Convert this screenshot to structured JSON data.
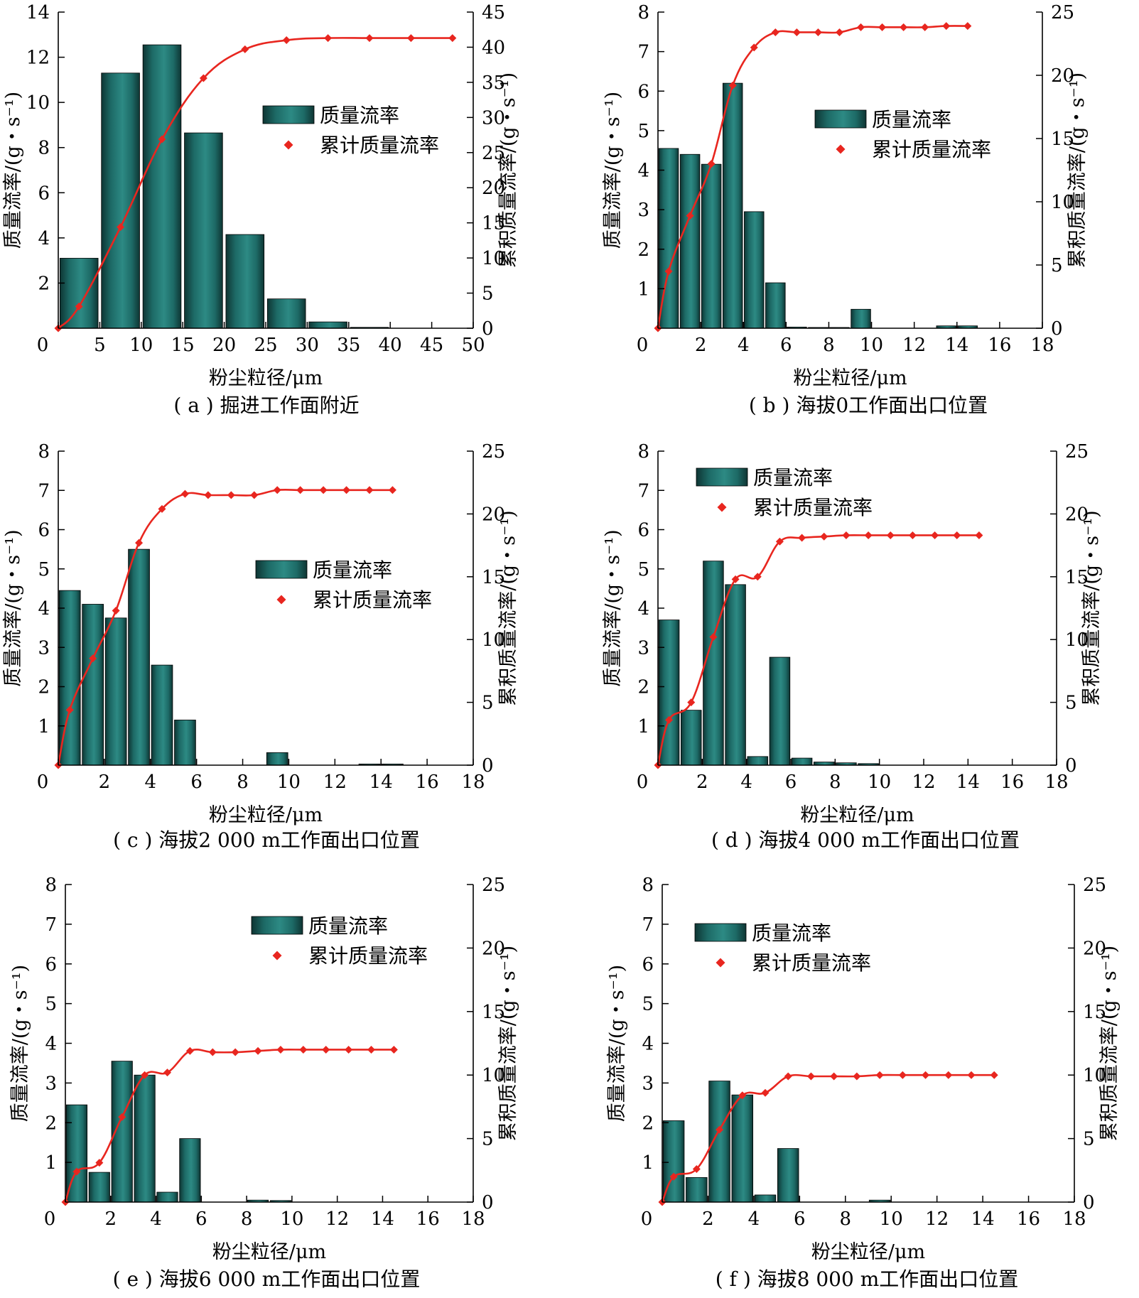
{
  "chart_data": [
    {
      "type": "bar",
      "caption": "( a ) 掘进工作面附近",
      "xlabel": "粉尘粒径/μm",
      "ylabel": "质量流率/(g・s⁻¹)",
      "y2label": "累积质量流率/(g・s⁻¹)",
      "xlim": [
        0,
        50
      ],
      "xticks": [
        0,
        5,
        10,
        15,
        20,
        25,
        30,
        35,
        40,
        45,
        50
      ],
      "ylim": [
        0,
        14
      ],
      "yticks": [
        2,
        4,
        6,
        8,
        10,
        12,
        14
      ],
      "y2lim": [
        0,
        45
      ],
      "y2ticks": [
        0,
        5,
        10,
        15,
        20,
        25,
        30,
        35,
        40,
        45
      ],
      "legend_position": "center-right",
      "series": [
        {
          "name": "质量流率",
          "type": "bar",
          "x": [
            2.5,
            7.5,
            12.5,
            17.5,
            22.5,
            27.5,
            32.5,
            37.5
          ],
          "values": [
            3.1,
            11.3,
            12.55,
            8.65,
            4.15,
            1.3,
            0.28,
            0.04
          ]
        },
        {
          "name": "累计质量流率",
          "type": "line",
          "x": [
            0,
            2.5,
            7.5,
            12.5,
            17.5,
            22.5,
            27.5,
            32.5,
            37.5,
            42.5,
            47.5
          ],
          "values": [
            0,
            3.1,
            14.4,
            26.9,
            35.6,
            39.7,
            41.0,
            41.3,
            41.3,
            41.3,
            41.3
          ]
        }
      ]
    },
    {
      "type": "bar",
      "caption": "( b ) 海拔0工作面出口位置",
      "xlabel": "粉尘粒径/μm",
      "ylabel": "质量流率/(g・s⁻¹)",
      "y2label": "累积质量流率/(g・s⁻¹)",
      "xlim": [
        0,
        18
      ],
      "xticks": [
        0,
        2,
        4,
        6,
        8,
        10,
        12,
        14,
        16,
        18
      ],
      "ylim": [
        0,
        8
      ],
      "yticks": [
        1,
        2,
        3,
        4,
        5,
        6,
        7,
        8
      ],
      "y2lim": [
        0,
        25
      ],
      "y2ticks": [
        0,
        5,
        10,
        15,
        20,
        25
      ],
      "legend_position": "center-right",
      "series": [
        {
          "name": "质量流率",
          "type": "bar",
          "x": [
            0.5,
            1.5,
            2.5,
            3.5,
            4.5,
            5.5,
            6.5,
            7.5,
            8.5,
            9.5,
            10.5,
            11.5,
            12.5,
            13.5,
            14.5
          ],
          "values": [
            4.55,
            4.4,
            4.15,
            6.2,
            2.95,
            1.15,
            0.03,
            0.02,
            0.02,
            0.48,
            0,
            0,
            0,
            0.06,
            0.06
          ]
        },
        {
          "name": "累计质量流率",
          "type": "line",
          "x": [
            0,
            0.5,
            1.5,
            2.5,
            3.5,
            4.5,
            5.5,
            6.5,
            7.5,
            8.5,
            9.5,
            10.5,
            11.5,
            12.5,
            13.5,
            14.5
          ],
          "values": [
            0,
            4.5,
            8.9,
            13.0,
            19.2,
            22.2,
            23.4,
            23.4,
            23.4,
            23.4,
            23.8,
            23.8,
            23.8,
            23.8,
            23.9,
            23.9
          ]
        }
      ]
    },
    {
      "type": "bar",
      "caption": "( c ) 海拔2 000 m工作面出口位置",
      "xlabel": "粉尘粒径/μm",
      "ylabel": "质量流率/(g・s⁻¹)",
      "y2label": "累积质量流率/(g・s⁻¹)",
      "xlim": [
        0,
        18
      ],
      "xticks": [
        0,
        2,
        4,
        6,
        8,
        10,
        12,
        14,
        16,
        18
      ],
      "ylim": [
        0,
        8
      ],
      "yticks": [
        1,
        2,
        3,
        4,
        5,
        6,
        7,
        8
      ],
      "y2lim": [
        0,
        25
      ],
      "y2ticks": [
        0,
        5,
        10,
        15,
        20,
        25
      ],
      "legend_position": "center-right",
      "series": [
        {
          "name": "质量流率",
          "type": "bar",
          "x": [
            0.5,
            1.5,
            2.5,
            3.5,
            4.5,
            5.5,
            6.5,
            7.5,
            8.5,
            9.5,
            10.5,
            11.5,
            12.5,
            13.5,
            14.5
          ],
          "values": [
            4.45,
            4.1,
            3.75,
            5.5,
            2.55,
            1.15,
            0,
            0,
            0,
            0.32,
            0,
            0,
            0,
            0.03,
            0.03
          ]
        },
        {
          "name": "累计质量流率",
          "type": "line",
          "x": [
            0,
            0.5,
            1.5,
            2.5,
            3.5,
            4.5,
            5.5,
            6.5,
            7.5,
            8.5,
            9.5,
            10.5,
            11.5,
            12.5,
            13.5,
            14.5
          ],
          "values": [
            0,
            4.4,
            8.5,
            12.3,
            17.7,
            20.4,
            21.6,
            21.5,
            21.5,
            21.5,
            21.9,
            21.9,
            21.9,
            21.9,
            21.9,
            21.9
          ]
        }
      ]
    },
    {
      "type": "bar",
      "caption": "( d ) 海拔4 000 m工作面出口位置",
      "xlabel": "粉尘粒径/μm",
      "ylabel": "质量流率/(g・s⁻¹)",
      "y2label": "累积质量流率/(g・s⁻¹)",
      "xlim": [
        0,
        18
      ],
      "xticks": [
        0,
        2,
        4,
        6,
        8,
        10,
        12,
        14,
        16,
        18
      ],
      "ylim": [
        0,
        8
      ],
      "yticks": [
        1,
        2,
        3,
        4,
        5,
        6,
        7,
        8
      ],
      "y2lim": [
        0,
        25
      ],
      "y2ticks": [
        0,
        5,
        10,
        15,
        20,
        25
      ],
      "legend_position": "top-left",
      "series": [
        {
          "name": "质量流率",
          "type": "bar",
          "x": [
            0.5,
            1.5,
            2.5,
            3.5,
            4.5,
            5.5,
            6.5,
            7.5,
            8.5,
            9.5,
            10.5,
            11.5,
            12.5,
            13.5,
            14.5
          ],
          "values": [
            3.7,
            1.4,
            5.2,
            4.6,
            0.22,
            2.75,
            0.18,
            0.08,
            0.06,
            0.04,
            0,
            0,
            0,
            0,
            0
          ]
        },
        {
          "name": "累计质量流率",
          "type": "line",
          "x": [
            0,
            0.5,
            1.5,
            2.5,
            3.5,
            4.5,
            5.5,
            6.5,
            7.5,
            8.5,
            9.5,
            10.5,
            11.5,
            12.5,
            13.5,
            14.5
          ],
          "values": [
            0,
            3.6,
            5.0,
            10.2,
            14.8,
            15.0,
            17.8,
            18.1,
            18.2,
            18.3,
            18.3,
            18.3,
            18.3,
            18.3,
            18.3,
            18.3
          ]
        }
      ]
    },
    {
      "type": "bar",
      "caption": "( e ) 海拔6 000 m工作面出口位置",
      "xlabel": "粉尘粒径/μm",
      "ylabel": "质量流率/(g・s⁻¹)",
      "y2label": "累积质量流率/(g・s⁻¹)",
      "xlim": [
        0,
        18
      ],
      "xticks": [
        0,
        2,
        4,
        6,
        8,
        10,
        12,
        14,
        16,
        18
      ],
      "ylim": [
        0,
        8
      ],
      "yticks": [
        1,
        2,
        3,
        4,
        5,
        6,
        7,
        8
      ],
      "y2lim": [
        0,
        25
      ],
      "y2ticks": [
        0,
        5,
        10,
        15,
        20,
        25
      ],
      "legend_position": "top-center",
      "series": [
        {
          "name": "质量流率",
          "type": "bar",
          "x": [
            0.5,
            1.5,
            2.5,
            3.5,
            4.5,
            5.5,
            6.5,
            7.5,
            8.5,
            9.5,
            10.5,
            11.5,
            12.5,
            13.5,
            14.5
          ],
          "values": [
            2.45,
            0.75,
            3.55,
            3.2,
            0.25,
            1.6,
            0,
            0,
            0.05,
            0.04,
            0,
            0,
            0,
            0,
            0
          ]
        },
        {
          "name": "累计质量流率",
          "type": "line",
          "x": [
            0,
            0.5,
            1.5,
            2.5,
            3.5,
            4.5,
            5.5,
            6.5,
            7.5,
            8.5,
            9.5,
            10.5,
            11.5,
            12.5,
            13.5,
            14.5
          ],
          "values": [
            0,
            2.4,
            3.1,
            6.7,
            10.0,
            10.2,
            11.9,
            11.8,
            11.8,
            11.9,
            12.0,
            12.0,
            12.0,
            12.0,
            12.0,
            12.0
          ]
        }
      ]
    },
    {
      "type": "bar",
      "caption": "( f ) 海拔8 000 m工作面出口位置",
      "xlabel": "粉尘粒径/μm",
      "ylabel": "质量流率/(g・s⁻¹)",
      "y2label": "累积质量流率/(g・s⁻¹)",
      "xlim": [
        0,
        18
      ],
      "xticks": [
        0,
        2,
        4,
        6,
        8,
        10,
        12,
        14,
        16,
        18
      ],
      "ylim": [
        0,
        8
      ],
      "yticks": [
        1,
        2,
        3,
        4,
        5,
        6,
        7,
        8
      ],
      "y2lim": [
        0,
        25
      ],
      "y2ticks": [
        0,
        5,
        10,
        15,
        20,
        25
      ],
      "legend_position": "top-left",
      "series": [
        {
          "name": "质量流率",
          "type": "bar",
          "x": [
            0.5,
            1.5,
            2.5,
            3.5,
            4.5,
            5.5,
            6.5,
            7.5,
            8.5,
            9.5,
            10.5,
            11.5,
            12.5,
            13.5,
            14.5
          ],
          "values": [
            2.05,
            0.62,
            3.05,
            2.7,
            0.18,
            1.35,
            0,
            0,
            0,
            0.05,
            0,
            0,
            0,
            0,
            0
          ]
        },
        {
          "name": "累计质量流率",
          "type": "line",
          "x": [
            0,
            0.5,
            1.5,
            2.5,
            3.5,
            4.5,
            5.5,
            6.5,
            7.5,
            8.5,
            9.5,
            10.5,
            11.5,
            12.5,
            13.5,
            14.5
          ],
          "values": [
            0,
            2.0,
            2.6,
            5.7,
            8.4,
            8.6,
            9.9,
            9.9,
            9.9,
            9.9,
            10.0,
            10.0,
            10.0,
            10.0,
            10.0,
            10.0
          ]
        }
      ]
    }
  ],
  "colors": {
    "bar_dark": "#0e3533",
    "bar_mid": "#1d6a66",
    "bar_light": "#2d8a84",
    "line": "#e8261f"
  }
}
